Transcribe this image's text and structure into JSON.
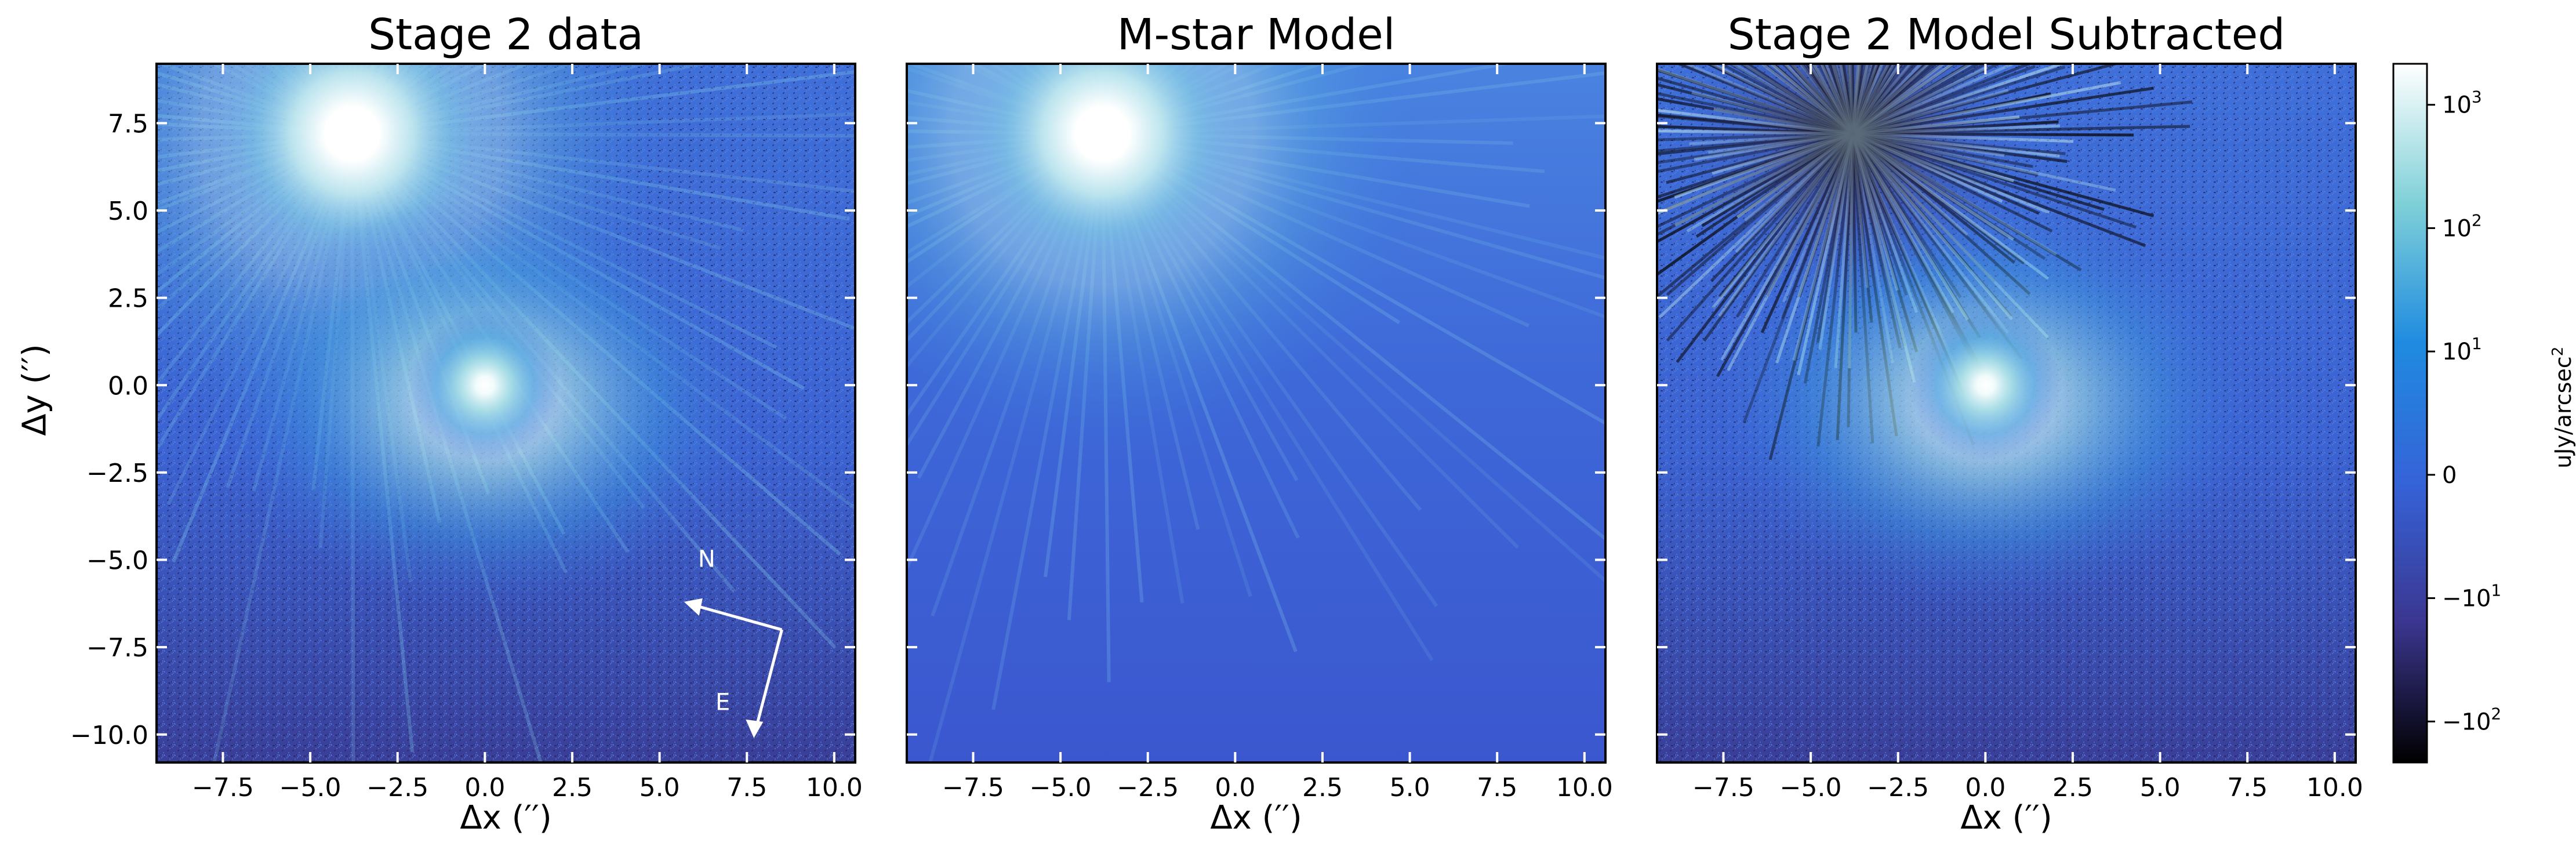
{
  "chart_data": [
    {
      "type": "heatmap",
      "title": "Stage 2 data",
      "xlabel": "Δx (′′)",
      "ylabel": "Δy (′′)",
      "xlim": [
        -9.4,
        10.6
      ],
      "ylim": [
        -10.8,
        9.2
      ],
      "xticks": [
        -7.5,
        -5.0,
        -2.5,
        0.0,
        2.5,
        5.0,
        7.5,
        10.0
      ],
      "xtick_labels": [
        "−7.5",
        "−5.0",
        "−2.5",
        "0.0",
        "2.5",
        "5.0",
        "7.5",
        "10.0"
      ],
      "yticks": [
        7.5,
        5.0,
        2.5,
        0.0,
        -2.5,
        -5.0,
        -7.5,
        -10.0
      ],
      "ytick_labels": [
        "7.5",
        "5.0",
        "2.5",
        "0.0",
        "−2.5",
        "−5.0",
        "−7.5",
        "−10.0"
      ],
      "features": [
        {
          "kind": "bright-star",
          "x": -3.8,
          "y": 7.2
        },
        {
          "kind": "disk-center",
          "x": 0.0,
          "y": 0.0
        }
      ],
      "compass": {
        "north_label": "N",
        "east_label": "E"
      }
    },
    {
      "type": "heatmap",
      "title": "M-star Model",
      "xlabel": "Δx (′′)",
      "xlim": [
        -9.4,
        10.6
      ],
      "ylim": [
        -10.8,
        9.2
      ],
      "xticks": [
        -7.5,
        -5.0,
        -2.5,
        0.0,
        2.5,
        5.0,
        7.5,
        10.0
      ],
      "xtick_labels": [
        "−7.5",
        "−5.0",
        "−2.5",
        "0.0",
        "2.5",
        "5.0",
        "7.5",
        "10.0"
      ],
      "features": [
        {
          "kind": "bright-star",
          "x": -3.8,
          "y": 7.2
        }
      ]
    },
    {
      "type": "heatmap",
      "title": "Stage 2 Model Subtracted",
      "xlabel": "Δx (′′)",
      "xlim": [
        -9.4,
        10.6
      ],
      "ylim": [
        -10.8,
        9.2
      ],
      "xticks": [
        -7.5,
        -5.0,
        -2.5,
        0.0,
        2.5,
        5.0,
        7.5,
        10.0
      ],
      "xtick_labels": [
        "−7.5",
        "−5.0",
        "−2.5",
        "0.0",
        "2.5",
        "5.0",
        "7.5",
        "10.0"
      ],
      "features": [
        {
          "kind": "residual-star",
          "x": -3.8,
          "y": 7.2
        },
        {
          "kind": "disk-center",
          "x": 0.0,
          "y": 0.0
        }
      ]
    }
  ],
  "colorbar": {
    "label": "uJy/arcsec",
    "label_exponent": "2",
    "scale": "symlog",
    "ticks": [
      {
        "value": 1000,
        "base": "10",
        "exp": "3"
      },
      {
        "value": 100,
        "base": "10",
        "exp": "2"
      },
      {
        "value": 10,
        "base": "10",
        "exp": "1"
      },
      {
        "value": 0,
        "base": "0",
        "exp": ""
      },
      {
        "value": -10,
        "base": "−10",
        "exp": "1"
      },
      {
        "value": -100,
        "base": "−10",
        "exp": "2"
      }
    ],
    "colors": [
      "#000000",
      "#3b3690",
      "#3563d8",
      "#1f8be0",
      "#7fd0d8",
      "#ffffff"
    ]
  }
}
